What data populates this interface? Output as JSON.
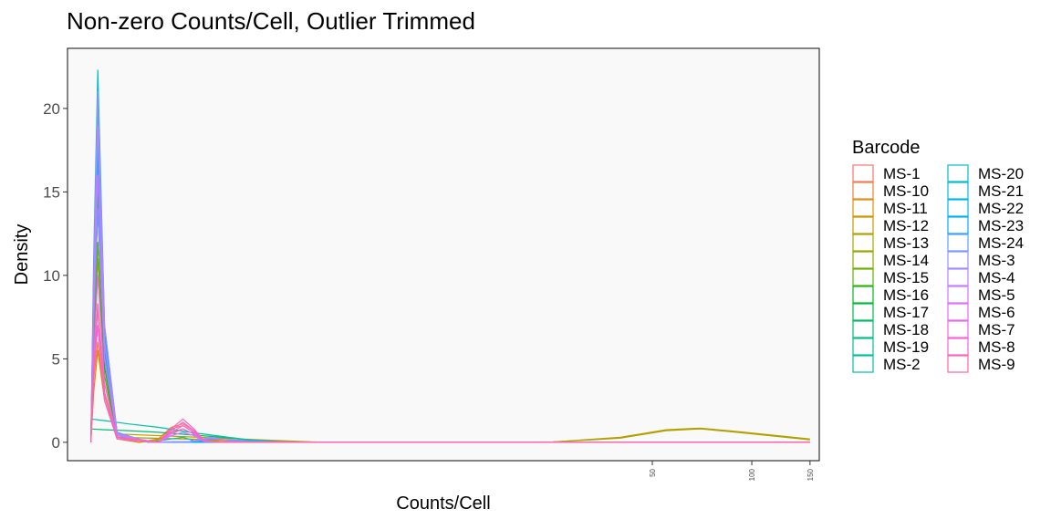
{
  "chart_data": {
    "type": "line",
    "title": "Non-zero Counts/Cell, Outlier Trimmed",
    "xlabel": "Counts/Cell",
    "ylabel": "Density",
    "x_scale": "log",
    "xlim": [
      0.85,
      160
    ],
    "ylim": [
      -1.1,
      23.6
    ],
    "x_ticks": [
      50,
      100,
      150
    ],
    "x_tick_labels": [
      "50",
      "100",
      "150"
    ],
    "y_ticks": [
      0,
      5,
      10,
      15,
      20
    ],
    "y_tick_labels": [
      "0",
      "5",
      "10",
      "15",
      "20"
    ],
    "grid": false,
    "panel_background": "#f9f9f9",
    "legend": {
      "title": "Barcode",
      "placement": "right",
      "columns": 2,
      "entries": [
        "MS-1",
        "MS-10",
        "MS-11",
        "MS-12",
        "MS-13",
        "MS-14",
        "MS-15",
        "MS-16",
        "MS-17",
        "MS-18",
        "MS-19",
        "MS-2",
        "MS-20",
        "MS-21",
        "MS-22",
        "MS-23",
        "MS-24",
        "MS-3",
        "MS-4",
        "MS-5",
        "MS-6",
        "MS-7",
        "MS-8",
        "MS-9"
      ]
    },
    "series": [
      {
        "name": "MS-1",
        "color": "#F8766D",
        "x": [
          1,
          1.02,
          1.05,
          1.1,
          1.2,
          1.4,
          1.6,
          1.75,
          1.9,
          2.05,
          2.2,
          2.5,
          3,
          4,
          150
        ],
        "y": [
          0,
          4.5,
          7,
          3.5,
          0.3,
          0,
          0.2,
          0.9,
          1.1,
          0.7,
          0.1,
          0.15,
          0.05,
          0,
          0
        ]
      },
      {
        "name": "MS-10",
        "color": "#EB8335",
        "x": [
          1,
          1.02,
          1.05,
          1.1,
          1.2,
          1.4,
          1.6,
          1.75,
          1.9,
          2.05,
          2.2,
          2.5,
          3,
          4,
          150
        ],
        "y": [
          0,
          3.8,
          6,
          2.8,
          0.3,
          0,
          0.2,
          0.8,
          1.0,
          0.6,
          0.1,
          0.1,
          0.05,
          0,
          0
        ]
      },
      {
        "name": "MS-11",
        "color": "#DA8F00",
        "x": [
          1,
          1.02,
          1.05,
          1.1,
          1.2,
          1.4,
          1.6,
          1.75,
          1.9,
          2.05,
          2.2,
          2.5,
          3,
          4,
          150
        ],
        "y": [
          0,
          3.0,
          5.5,
          2.5,
          0.2,
          0,
          0.15,
          0.6,
          0.8,
          0.5,
          0.1,
          0.1,
          0.03,
          0,
          0
        ]
      },
      {
        "name": "MS-12",
        "color": "#C49A00",
        "x": [
          1,
          1.02,
          1.05,
          1.1,
          1.2,
          5,
          12,
          25,
          40,
          55,
          70,
          90,
          120,
          150
        ],
        "y": [
          0,
          9,
          17.5,
          6,
          0.5,
          0,
          0,
          0.02,
          0.3,
          0.75,
          0.85,
          0.65,
          0.4,
          0.2
        ]
      },
      {
        "name": "MS-13",
        "color": "#AAA300",
        "x": [
          1,
          1.02,
          1.05,
          1.1,
          1.2,
          5,
          12,
          25,
          40,
          55,
          70,
          90,
          120,
          150
        ],
        "y": [
          0,
          6,
          11,
          4,
          0.3,
          0,
          0,
          0.02,
          0.25,
          0.7,
          0.8,
          0.6,
          0.35,
          0.15
        ]
      },
      {
        "name": "MS-14",
        "color": "#8AAB00",
        "x": [
          1,
          1.02,
          1.05,
          1.1,
          1.2,
          1.5,
          2,
          3,
          150
        ],
        "y": [
          0,
          8,
          16,
          5,
          0.5,
          0,
          0,
          0,
          0
        ]
      },
      {
        "name": "MS-15",
        "color": "#5BB300",
        "x": [
          1,
          1.02,
          1.05,
          1.1,
          1.2,
          1.5,
          2,
          3,
          150
        ],
        "y": [
          0,
          6,
          12,
          4,
          0.4,
          0,
          0,
          0,
          0
        ]
      },
      {
        "name": "MS-16",
        "color": "#00B81F",
        "x": [
          1,
          1.02,
          1.05,
          1.1,
          1.2,
          1.5,
          2,
          3,
          150
        ],
        "y": [
          0,
          7,
          14,
          4.5,
          0.4,
          0,
          0,
          0,
          0
        ]
      },
      {
        "name": "MS-17",
        "color": "#00BB4E",
        "x": [
          1,
          1.02,
          1.05,
          1.1,
          1.2,
          1.5,
          2,
          3,
          150
        ],
        "y": [
          0,
          7.5,
          15,
          5,
          0.5,
          0,
          0,
          0,
          0
        ]
      },
      {
        "name": "MS-18",
        "color": "#00BE70",
        "x": [
          1,
          1.1,
          1.3,
          1.6,
          2,
          2.5,
          3,
          4,
          150
        ],
        "y": [
          0.8,
          0.75,
          0.7,
          0.6,
          0.45,
          0.3,
          0.15,
          0,
          0
        ]
      },
      {
        "name": "MS-19",
        "color": "#00C08D",
        "x": [
          1,
          1.02,
          1.05,
          1.1,
          1.2,
          1.5,
          2,
          3,
          150
        ],
        "y": [
          0,
          8,
          16,
          5,
          0.5,
          0,
          0,
          0,
          0
        ]
      },
      {
        "name": "MS-2",
        "color": "#00C1A7",
        "x": [
          1,
          1.1,
          1.3,
          1.6,
          2,
          2.5,
          3,
          4,
          150
        ],
        "y": [
          1.4,
          1.3,
          1.1,
          0.9,
          0.6,
          0.35,
          0.15,
          0,
          0
        ]
      },
      {
        "name": "MS-20",
        "color": "#00BFC4",
        "x": [
          1,
          1.02,
          1.05,
          1.1,
          1.2,
          1.5,
          1.75,
          1.9,
          2.05,
          2.5,
          3,
          150
        ],
        "y": [
          0,
          11,
          22.3,
          7,
          0.6,
          0,
          0.2,
          0.3,
          0.1,
          0,
          0,
          0
        ]
      },
      {
        "name": "MS-21",
        "color": "#00BBDB",
        "x": [
          1,
          1.02,
          1.05,
          1.1,
          1.2,
          1.5,
          2,
          3,
          150
        ],
        "y": [
          0,
          9,
          18.2,
          6,
          0.5,
          0,
          0,
          0,
          0
        ]
      },
      {
        "name": "MS-22",
        "color": "#00B5EE",
        "x": [
          1,
          1.02,
          1.05,
          1.1,
          1.2,
          1.5,
          2,
          3,
          150
        ],
        "y": [
          0,
          10,
          20,
          6.5,
          0.6,
          0,
          0,
          0,
          0
        ]
      },
      {
        "name": "MS-23",
        "color": "#00ACFC",
        "x": [
          1,
          1.02,
          1.05,
          1.1,
          1.2,
          1.5,
          2,
          3,
          150
        ],
        "y": [
          0,
          8.5,
          17,
          5.5,
          0.5,
          0,
          0,
          0,
          0
        ]
      },
      {
        "name": "MS-24",
        "color": "#619CFF",
        "x": [
          1,
          1.02,
          1.05,
          1.1,
          1.2,
          1.5,
          2,
          2.3,
          2.6,
          3,
          4,
          5,
          150
        ],
        "y": [
          0,
          7,
          14,
          5,
          0.5,
          0,
          0.05,
          0.2,
          0.15,
          0.08,
          0.03,
          0,
          0
        ]
      },
      {
        "name": "MS-3",
        "color": "#9590FF",
        "x": [
          1,
          1.02,
          1.05,
          1.1,
          1.2,
          1.5,
          2,
          2.3,
          2.6,
          3,
          4,
          150
        ],
        "y": [
          0,
          10,
          21,
          7,
          0.6,
          0,
          0.05,
          0.25,
          0.1,
          0.03,
          0,
          0
        ]
      },
      {
        "name": "MS-4",
        "color": "#B983FF",
        "x": [
          1,
          1.02,
          1.05,
          1.1,
          1.2,
          1.5,
          2,
          2.3,
          2.6,
          3,
          150
        ],
        "y": [
          0,
          9,
          19,
          6,
          0.5,
          0,
          0.05,
          0.3,
          0.1,
          0,
          0
        ]
      },
      {
        "name": "MS-5",
        "color": "#D376FF",
        "x": [
          1,
          1.02,
          1.05,
          1.1,
          1.2,
          1.6,
          1.75,
          1.9,
          2.05,
          2.2,
          2.5,
          150
        ],
        "y": [
          0,
          8,
          16,
          5,
          0.4,
          0,
          0.4,
          0.6,
          0.4,
          0.05,
          0,
          0
        ]
      },
      {
        "name": "MS-6",
        "color": "#E76BF3",
        "x": [
          1,
          1.02,
          1.05,
          1.1,
          1.2,
          1.6,
          1.75,
          1.9,
          2.05,
          2.2,
          2.5,
          150
        ],
        "y": [
          0,
          5,
          10,
          3.5,
          0.3,
          0,
          0.5,
          0.8,
          0.5,
          0.05,
          0,
          0
        ]
      },
      {
        "name": "MS-7",
        "color": "#F564E3",
        "x": [
          1,
          1.02,
          1.05,
          1.1,
          1.2,
          1.6,
          1.75,
          1.9,
          2.05,
          2.2,
          2.5,
          150
        ],
        "y": [
          0,
          4,
          7,
          2.5,
          0.2,
          0,
          0.6,
          1.0,
          0.6,
          0.1,
          0,
          0
        ]
      },
      {
        "name": "MS-8",
        "color": "#FD61D1",
        "x": [
          1,
          1.02,
          1.05,
          1.1,
          1.2,
          1.6,
          1.75,
          1.9,
          2.05,
          2.2,
          2.5,
          150
        ],
        "y": [
          0,
          4.2,
          8,
          3,
          0.3,
          0,
          0.7,
          1.2,
          0.7,
          0.1,
          0,
          0
        ]
      },
      {
        "name": "MS-9",
        "color": "#FF67A4",
        "x": [
          1,
          1.02,
          1.05,
          1.1,
          1.2,
          1.6,
          1.75,
          1.9,
          2.05,
          2.2,
          2.5,
          150
        ],
        "y": [
          0,
          4.5,
          8.3,
          3,
          0.3,
          0,
          0.8,
          1.4,
          0.8,
          0.1,
          0,
          0
        ]
      }
    ]
  }
}
